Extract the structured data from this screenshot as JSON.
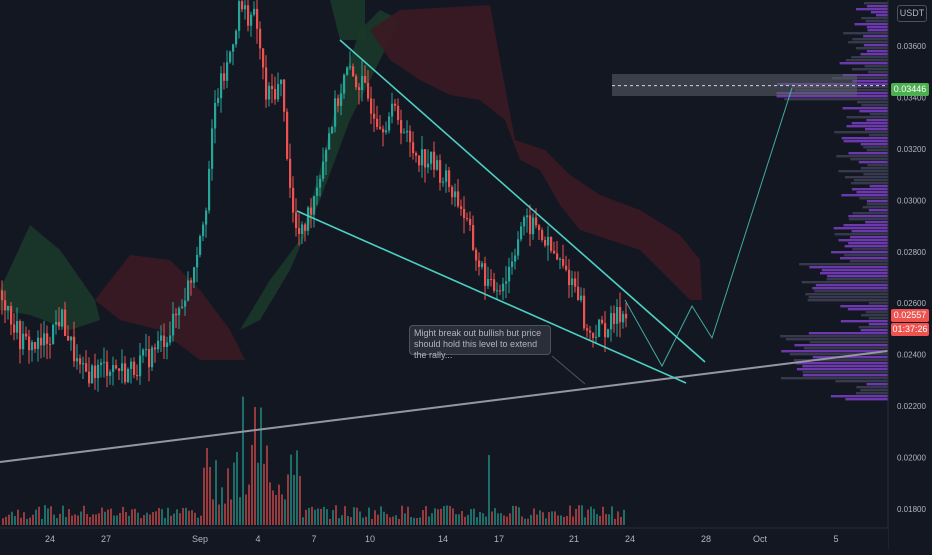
{
  "chart_data": {
    "type": "candlestick",
    "title": "",
    "quote_currency": "USDT",
    "x_axis": {
      "tick_labels": [
        "24",
        "27",
        "Sep",
        "4",
        "7",
        "10",
        "14",
        "17",
        "21",
        "24",
        "28",
        "Oct",
        "5"
      ]
    },
    "y_axis": {
      "side": "right",
      "range": [
        0.0174,
        0.0376
      ],
      "tick_labels": [
        "0.03600",
        "0.03400",
        "0.03200",
        "0.03000",
        "0.02800",
        "0.02600",
        "0.02400",
        "0.02200",
        "0.02000",
        "0.01800"
      ]
    },
    "current_price": {
      "value": "0.02557",
      "countdown": "01:37:26"
    },
    "marked_level": {
      "value": "0.03446"
    },
    "annotation": "Might break out bullish but price should hold this level to extend the rally...",
    "indicators": [
      "ichimoku-cloud",
      "volume",
      "volume-profile"
    ],
    "grid": false,
    "colors": {
      "background": "#131722",
      "up": "#26a69a",
      "down": "#ef5350",
      "trendline": "#4dd0c4",
      "support": "#9598a1",
      "cloud_bull": "#1b3a2a",
      "cloud_bear": "#3d1a22",
      "profile": "#7b3fc4",
      "level_box": "#5d606b",
      "level_tag": "#4caf50"
    }
  }
}
